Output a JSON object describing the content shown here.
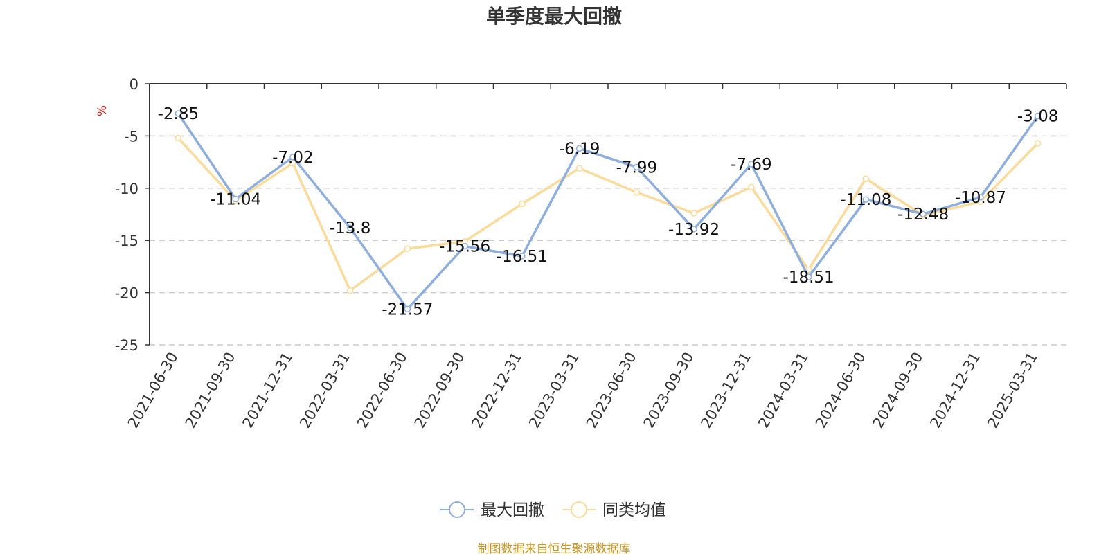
{
  "title": "单季度最大回撤",
  "source_note": "制图数据来自恒生聚源数据库",
  "colors": {
    "series1": "#8eaedd",
    "series2": "#fadb9b",
    "unit": "#e02020"
  },
  "chart_data": {
    "type": "line",
    "title": "单季度最大回撤",
    "ylabel": "%",
    "ylim": [
      -25,
      0
    ],
    "yticks": [
      0,
      -5,
      -10,
      -15,
      -20,
      -25
    ],
    "grid": true,
    "legend_position": "bottom",
    "categories": [
      "2021-06-30",
      "2021-09-30",
      "2021-12-31",
      "2022-03-31",
      "2022-06-30",
      "2022-09-30",
      "2022-12-31",
      "2023-03-31",
      "2023-06-30",
      "2023-09-30",
      "2023-12-31",
      "2024-03-31",
      "2024-06-30",
      "2024-09-30",
      "2024-12-31",
      "2025-03-31"
    ],
    "series": [
      {
        "name": "最大回撤",
        "values": [
          -2.85,
          -11.04,
          -7.02,
          -13.8,
          -21.57,
          -15.56,
          -16.51,
          -6.19,
          -7.99,
          -13.92,
          -7.69,
          -18.51,
          -11.08,
          -12.48,
          -10.87,
          -3.08
        ],
        "labels": [
          "-2.85",
          "-11.04",
          "-7.02",
          "-13.8",
          "-21.57",
          "-15.56",
          "-16.51",
          "-6.19",
          "-7.99",
          "-13.92",
          "-7.69",
          "-18.51",
          "-11.08",
          "-12.48",
          "-10.87",
          "-3.08"
        ]
      },
      {
        "name": "同类均值",
        "values": [
          -5.2,
          -11.2,
          -7.6,
          -19.8,
          -15.8,
          -15.1,
          -11.5,
          -8.1,
          -10.4,
          -12.4,
          -9.9,
          -17.8,
          -9.1,
          -12.6,
          -11.3,
          -5.7
        ]
      }
    ]
  }
}
